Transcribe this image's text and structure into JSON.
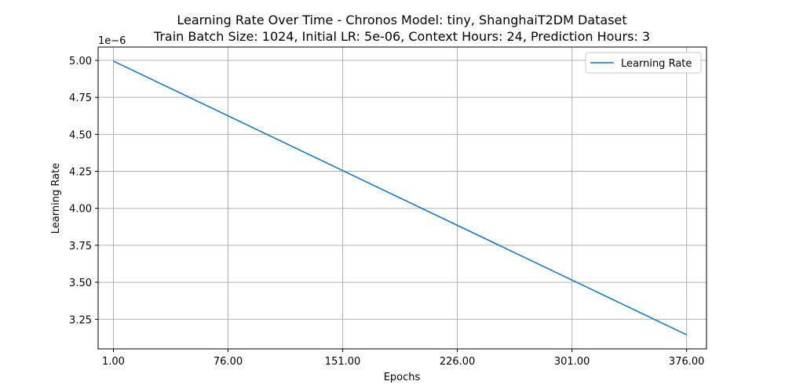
{
  "chart_data": {
    "type": "line",
    "title": "Learning Rate Over Time - Chronos Model: tiny, ShanghaiT2DM Dataset",
    "subtitle": "Train Batch Size: 1024, Initial LR: 5e-06, Context Hours: 24, Prediction Hours: 3",
    "xlabel": "Epochs",
    "ylabel": "Learning Rate",
    "y_offset_label": "1e−6",
    "y_scale_exponent": -6,
    "xlim": [
      -9.0,
      389.0
    ],
    "ylim": [
      3.05,
      5.09
    ],
    "x_ticks": [
      1,
      76,
      151,
      226,
      301,
      376
    ],
    "x_tick_labels": [
      "1.00",
      "76.00",
      "151.00",
      "226.00",
      "301.00",
      "376.00"
    ],
    "y_ticks": [
      3.25,
      3.5,
      3.75,
      4.0,
      4.25,
      4.5,
      4.75,
      5.0
    ],
    "y_tick_labels": [
      "3.25",
      "3.50",
      "3.75",
      "4.00",
      "4.25",
      "4.50",
      "4.75",
      "5.00"
    ],
    "grid": true,
    "legend_position": "upper-right",
    "series": [
      {
        "name": "Learning Rate",
        "color": "#1f77b4",
        "x": [
          1,
          376
        ],
        "y": [
          4.995,
          3.145
        ]
      }
    ]
  }
}
